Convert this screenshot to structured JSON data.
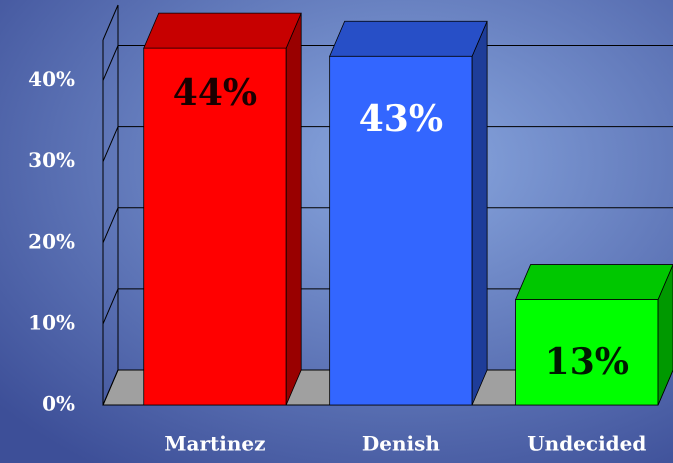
{
  "chart_data": {
    "type": "bar3d",
    "categories": [
      "Martinez",
      "Denish",
      "Undecided"
    ],
    "values": [
      44,
      43,
      13
    ],
    "value_labels": [
      "44%",
      "43%",
      "13%"
    ],
    "colors": [
      "#ff0000",
      "#3366ff",
      "#00ff00"
    ],
    "label_colors": [
      "#1a0000",
      "#ffffff",
      "#001a00"
    ],
    "ylim": [
      0,
      45
    ],
    "yticks": [
      {
        "value": 0,
        "label": "0%"
      },
      {
        "value": 10,
        "label": "10%"
      },
      {
        "value": 20,
        "label": "20%"
      },
      {
        "value": 30,
        "label": "30%"
      },
      {
        "value": 40,
        "label": "40%"
      }
    ],
    "grid": true
  }
}
